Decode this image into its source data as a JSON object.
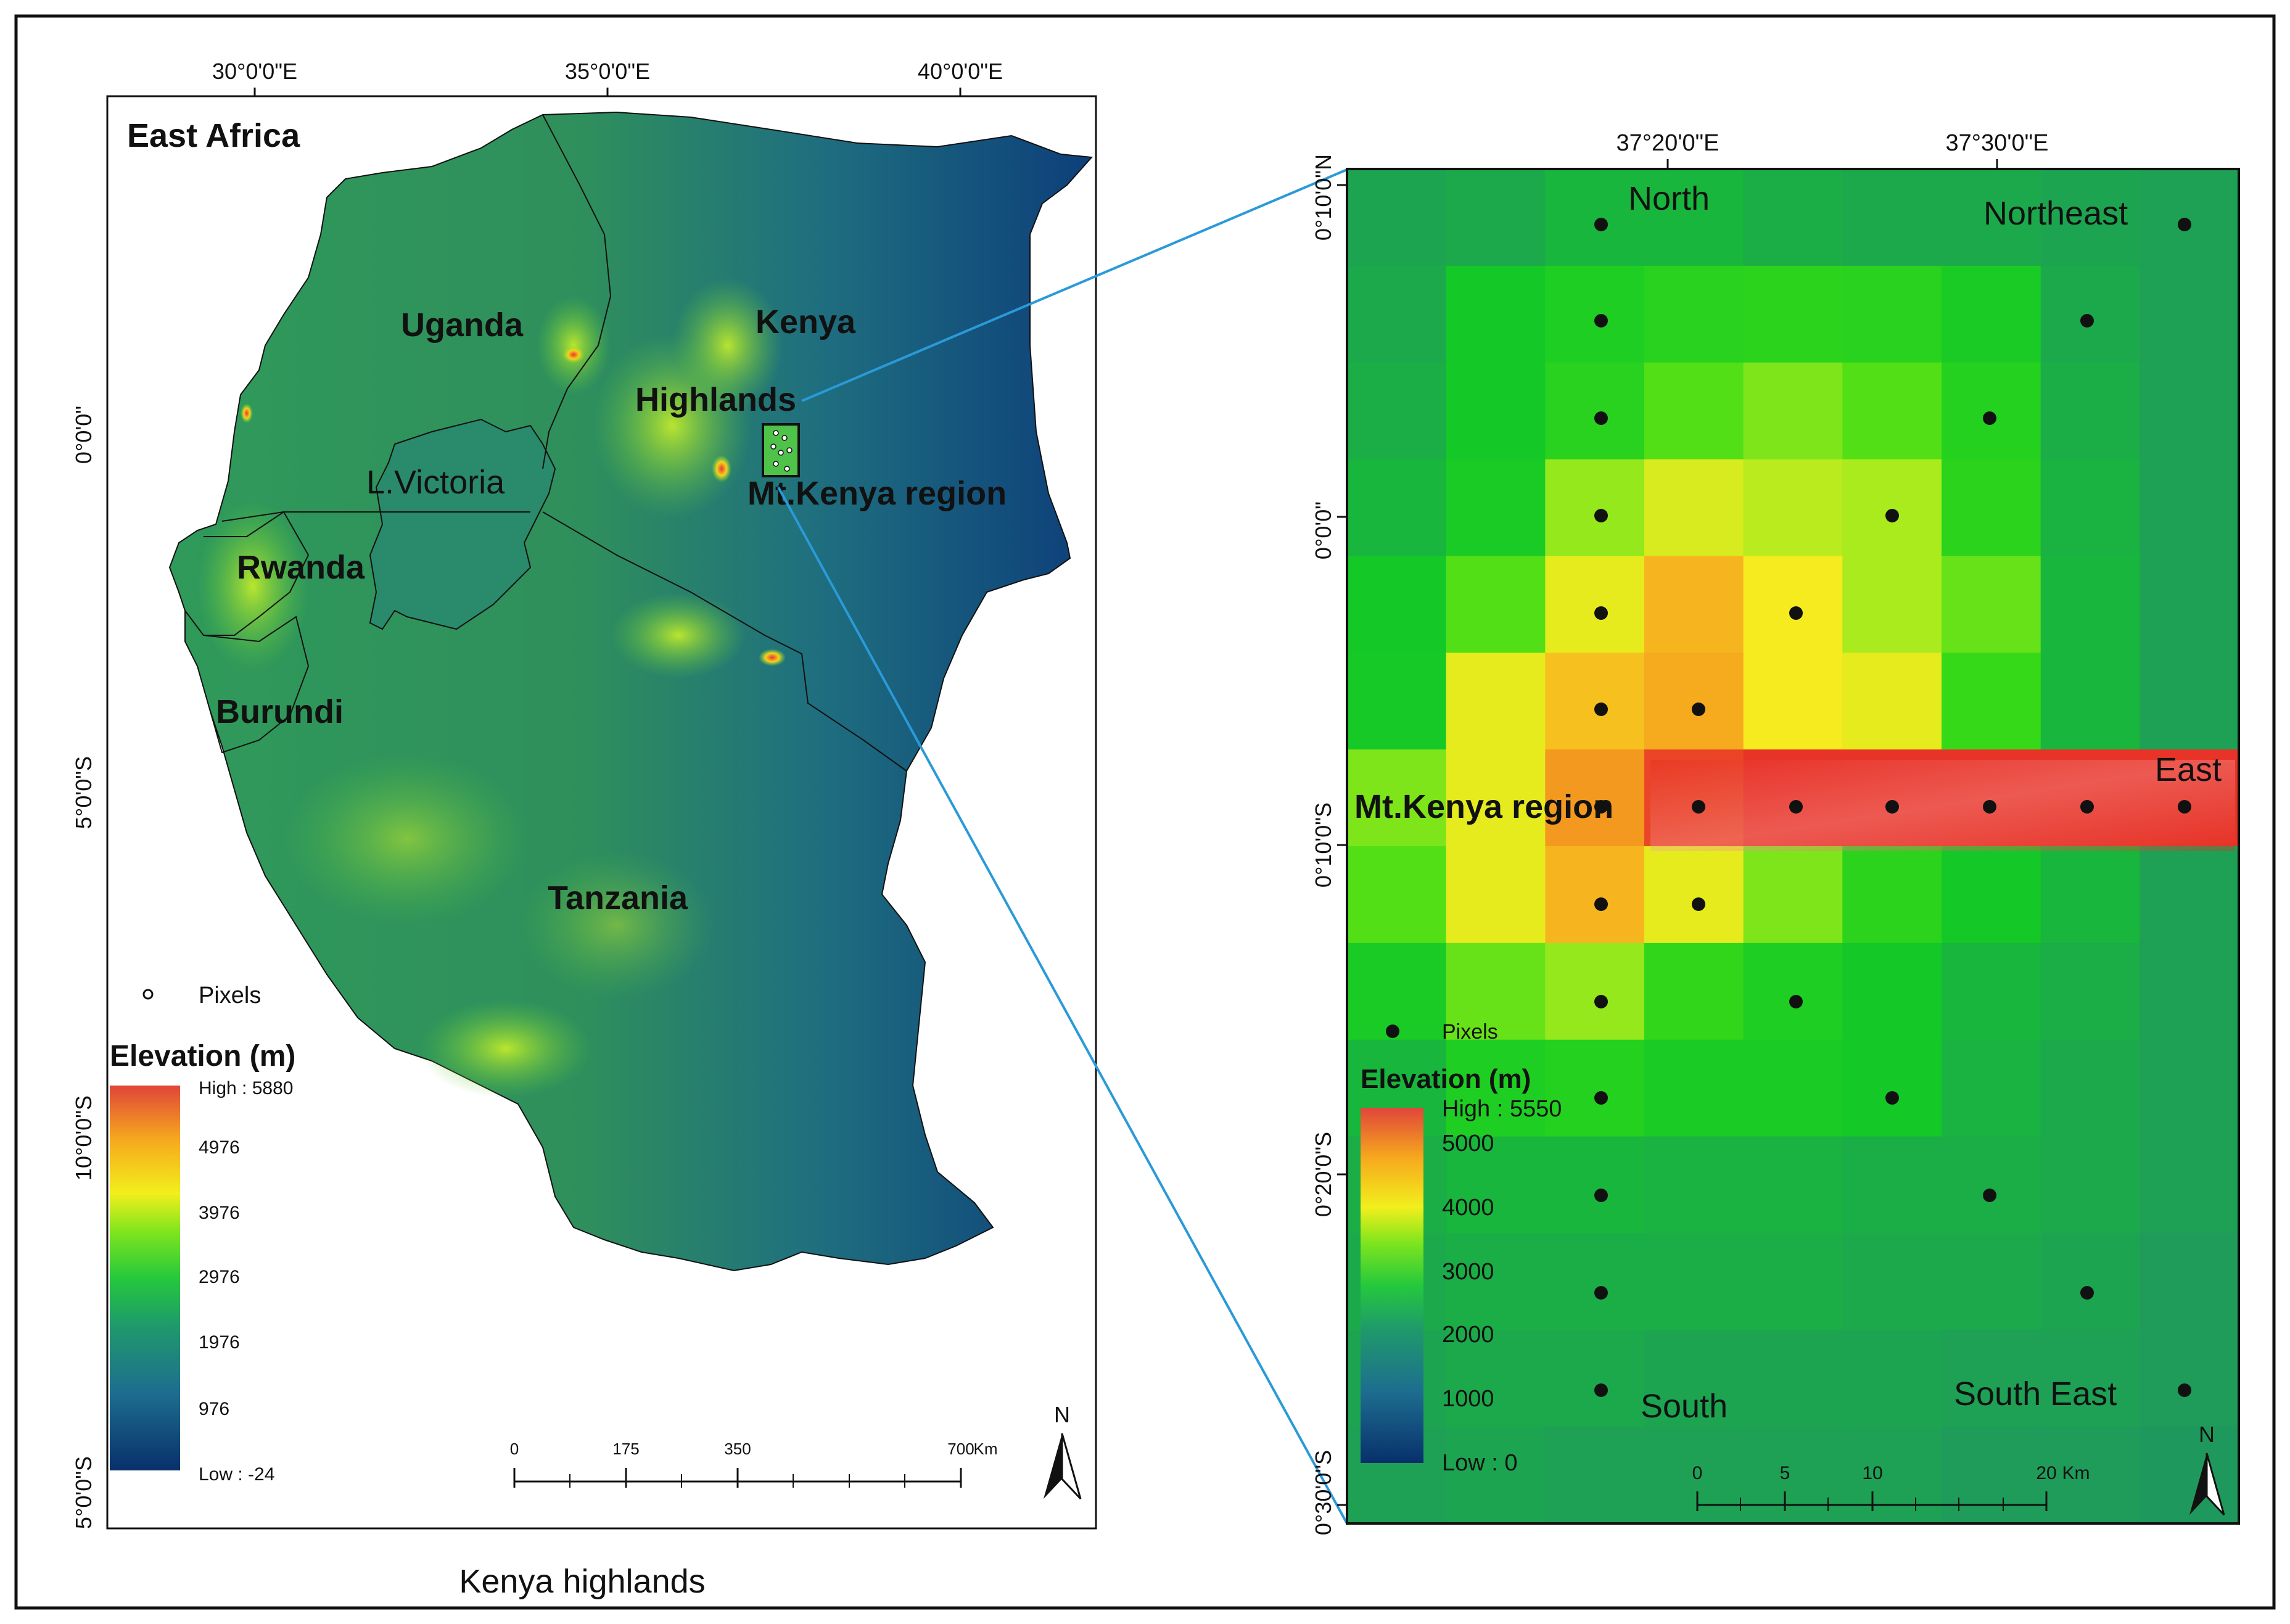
{
  "left_map": {
    "title": "East Africa",
    "lon_ticks": [
      "30°0'0\"E",
      "35°0'0\"E",
      "40°0'0\"E"
    ],
    "lat_ticks": [
      "0°0'0\"",
      "5°0'0\"S",
      "10°0'0\"S",
      "5°0'0\"S"
    ],
    "countries": [
      "Uganda",
      "Kenya",
      "Rwanda",
      "Burundi",
      "Tanzania"
    ],
    "region_labels": [
      "Highlands",
      "L.Victoria",
      "Mt.Kenya region"
    ],
    "pixels_legend": "Pixels",
    "legend": {
      "title": "Elevation (m)",
      "labels": [
        "High : 5880",
        "4976",
        "3976",
        "2976",
        "1976",
        "976",
        "Low : -24"
      ]
    },
    "scale": {
      "labels": [
        "0",
        "175",
        "350",
        "700"
      ],
      "unit": "Km"
    },
    "north": "N",
    "caption": "Kenya highlands"
  },
  "right_map": {
    "lon_ticks": [
      "37°20'0\"E",
      "37°30'0\"E"
    ],
    "lat_ticks": [
      "0°10'0\"N",
      "0°0'0\"",
      "0°10'0\"S",
      "0°20'0\"S",
      "0°30'0\"S"
    ],
    "direction_labels": [
      "North",
      "Northeast",
      "East",
      "South",
      "South East"
    ],
    "region_label": "Mt.Kenya region",
    "pixels_legend": "Pixels",
    "legend": {
      "title": "Elevation (m)",
      "labels": [
        "High : 5550",
        "5000",
        "4000",
        "3000",
        "2000",
        "1000",
        "Low : 0"
      ]
    },
    "scale": {
      "labels": [
        "0",
        "5",
        "10",
        "20"
      ],
      "unit": "Km"
    },
    "north": "N",
    "grid_elevation_m": [
      [
        1900,
        1950,
        2100,
        2100,
        2000,
        1950,
        1950,
        1900,
        1850
      ],
      [
        1950,
        2300,
        2500,
        2650,
        2700,
        2650,
        2400,
        1950,
        1850
      ],
      [
        2000,
        2300,
        2650,
        3100,
        3300,
        3100,
        2600,
        2000,
        1850
      ],
      [
        2100,
        2400,
        3400,
        3800,
        3600,
        3500,
        2700,
        2050,
        1850
      ],
      [
        2300,
        3100,
        3900,
        4500,
        4000,
        3500,
        3200,
        2100,
        1850
      ],
      [
        2350,
        3900,
        4400,
        4600,
        4000,
        3900,
        2900,
        2100,
        1850
      ],
      [
        3300,
        3900,
        4700,
        5200,
        5300,
        5300,
        5300,
        5300,
        5350
      ],
      [
        3100,
        3900,
        4500,
        3900,
        3300,
        2700,
        2300,
        2100,
        1850
      ],
      [
        2400,
        3200,
        3400,
        2800,
        2500,
        2300,
        2100,
        2000,
        1850
      ],
      [
        2100,
        2500,
        2600,
        2400,
        2400,
        2300,
        2050,
        1950,
        1850
      ],
      [
        2000,
        2100,
        2100,
        2050,
        2050,
        2000,
        2000,
        1950,
        1850
      ],
      [
        1950,
        2000,
        2000,
        2000,
        2000,
        1950,
        1950,
        1900,
        1800
      ],
      [
        1900,
        1950,
        1950,
        1900,
        1900,
        1900,
        1850,
        1850,
        1800
      ],
      [
        1850,
        1900,
        1850,
        1850,
        1850,
        1850,
        1800,
        1800,
        1750
      ]
    ]
  }
}
